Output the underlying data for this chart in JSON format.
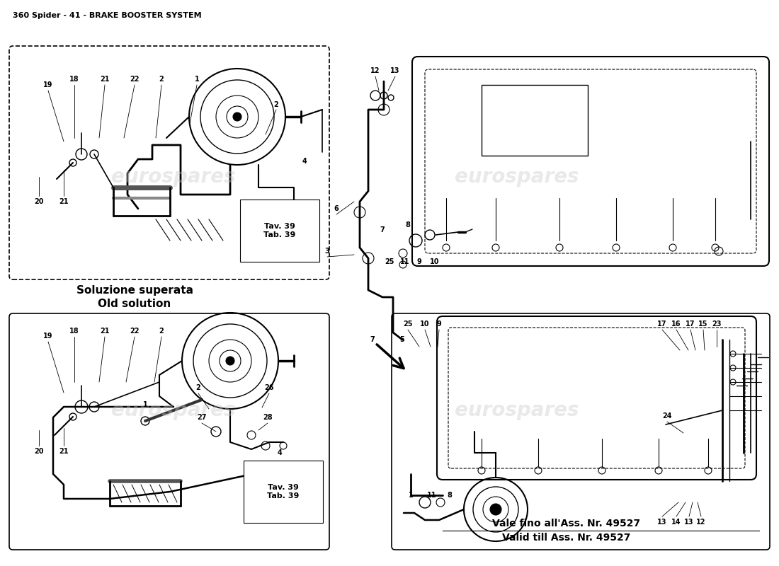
{
  "title": "360 Spider - 41 - BRAKE BOOSTER SYSTEM",
  "title_fontsize": 8,
  "background_color": "#ffffff",
  "watermark_text": "eurospares",
  "watermark_color": "#c8c8c8",
  "old_solution_it": "Soluzione superata",
  "old_solution_en": "Old solution",
  "valid_it": "Vale fino all'Ass. Nr. 49527",
  "valid_en": "Valid till Ass. Nr. 49527",
  "tav": "Tav. 39\nTab. 39",
  "label_fs": 7,
  "annot_fs": 8
}
